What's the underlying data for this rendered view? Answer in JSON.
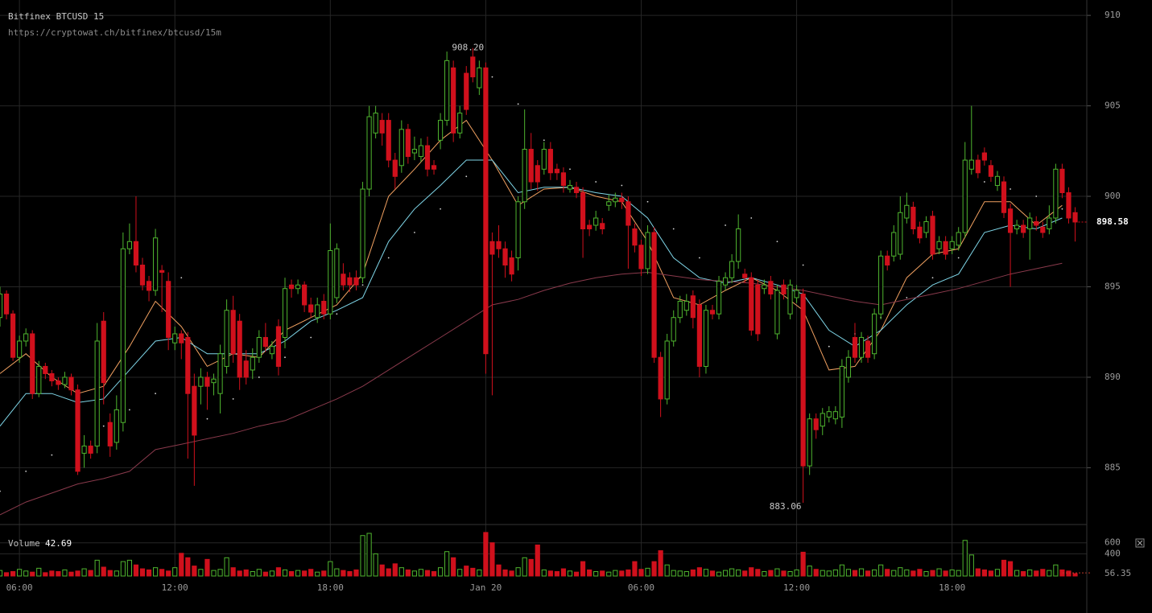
{
  "chart_data": {
    "type": "candlestick",
    "title": "Bitfinex BTCUSD 15",
    "subtitle": "https://cryptowat.ch/bitfinex/btcusd/15m",
    "xlim": [
      5.25,
      47.2
    ],
    "ylim": [
      881.95,
      910.85
    ],
    "yticks": [
      885,
      890,
      895,
      900,
      905,
      910
    ],
    "xticks": [
      {
        "value": 6,
        "label": "06:00"
      },
      {
        "value": 12,
        "label": "12:00"
      },
      {
        "value": 18,
        "label": "18:00"
      },
      {
        "value": 24,
        "label": "Jan 20"
      },
      {
        "value": 30,
        "label": "06:00"
      },
      {
        "value": 36,
        "label": "12:00"
      },
      {
        "value": 42,
        "label": "18:00"
      }
    ],
    "up_color": "#4fb52f",
    "down_color": "#d0101c",
    "grid": true,
    "x": [
      5.25,
      5.5,
      5.75,
      6,
      6.25,
      6.5,
      6.75,
      7,
      7.25,
      7.5,
      7.75,
      8,
      8.25,
      8.5,
      8.75,
      9,
      9.25,
      9.5,
      9.75,
      10,
      10.25,
      10.5,
      10.75,
      11,
      11.25,
      11.5,
      11.75,
      12,
      12.25,
      12.5,
      12.75,
      13,
      13.25,
      13.5,
      13.75,
      14,
      14.25,
      14.5,
      14.75,
      15,
      15.25,
      15.5,
      15.75,
      16,
      16.25,
      16.5,
      16.75,
      17,
      17.25,
      17.5,
      17.75,
      18,
      18.25,
      18.5,
      18.75,
      19,
      19.25,
      19.5,
      19.75,
      20,
      20.25,
      20.5,
      20.75,
      21,
      21.25,
      21.5,
      21.75,
      22,
      22.25,
      22.5,
      22.75,
      23,
      23.25,
      23.5,
      23.75,
      24,
      24.25,
      24.5,
      24.75,
      25,
      25.25,
      25.5,
      25.75,
      26,
      26.25,
      26.5,
      26.75,
      27,
      27.25,
      27.5,
      27.75,
      28,
      28.25,
      28.5,
      28.75,
      29,
      29.25,
      29.5,
      29.75,
      30,
      30.25,
      30.5,
      30.75,
      31,
      31.25,
      31.5,
      31.75,
      32,
      32.25,
      32.5,
      32.75,
      33,
      33.25,
      33.5,
      33.75,
      34,
      34.25,
      34.5,
      34.75,
      35,
      35.25,
      35.5,
      35.75,
      36,
      36.25,
      36.5,
      36.75,
      37,
      37.25,
      37.5,
      37.75,
      38,
      38.25,
      38.5,
      38.75,
      39,
      39.25,
      39.5,
      39.75,
      40,
      40.25,
      40.5,
      40.75,
      41,
      41.25,
      41.5,
      41.75,
      42,
      42.25,
      42.5,
      42.75,
      43,
      43.25,
      43.5,
      43.75,
      44,
      44.25,
      44.5,
      44.75,
      45,
      45.25,
      45.5,
      45.75,
      46,
      46.25,
      46.5,
      46.75
    ],
    "open": [
      893.3,
      894.6,
      893.5,
      891.1,
      892.0,
      892.4,
      889.1,
      890.6,
      890.2,
      889.8,
      889.6,
      890.0,
      889.3,
      885.8,
      886.2,
      886.2,
      893.1,
      887.5,
      886.4,
      887.5,
      897.1,
      897.5,
      896.2,
      895.3,
      894.8,
      895.9,
      895.3,
      891.9,
      892.4,
      892.2,
      889.5,
      889.5,
      890.0,
      889.7,
      889.1,
      890.6,
      893.7,
      893.1,
      890.9,
      890.4,
      891.1,
      892.2,
      891.3,
      892.8,
      892.2,
      895.1,
      894.9,
      895.1,
      894.0,
      893.3,
      894.2,
      893.5,
      894.4,
      895.7,
      895.5,
      895.5,
      895.5,
      900.4,
      903.5,
      904.2,
      904.2,
      902.0,
      901.7,
      903.7,
      902.4,
      902.2,
      902.8,
      901.7,
      903.1,
      904.2,
      907.1,
      903.5,
      906.8,
      907.7,
      906.0,
      907.1,
      897.5,
      897.5,
      897.1,
      896.6,
      896.6,
      899.7,
      902.6,
      901.7,
      901.5,
      902.6,
      901.5,
      901.3,
      900.4,
      900.5,
      900.2,
      898.4,
      898.4,
      898.5,
      899.5,
      899.7,
      899.9,
      899.7,
      898.2,
      897.3,
      896.0,
      898.0,
      891.1,
      888.8,
      892.0,
      893.3,
      893.7,
      894.5,
      894.0,
      890.6,
      893.7,
      893.5,
      895.1,
      895.5,
      896.4,
      895.7,
      895.5,
      895.1,
      894.9,
      895.3,
      892.4,
      895.1,
      893.5,
      894.4,
      894.6,
      885.1,
      887.7,
      887.3,
      887.8,
      887.7,
      887.8,
      890.0,
      892.2,
      891.1,
      892.0,
      891.3,
      893.5,
      896.7,
      896.7,
      896.8,
      898.8,
      899.4,
      898.3,
      898.0,
      898.9,
      897.1,
      897.5,
      897.1,
      897.3,
      898.0,
      901.5,
      902.0,
      902.4,
      901.7,
      900.6,
      900.8,
      899.3,
      898.2,
      898.4,
      898.2,
      898.6,
      898.3,
      898.2,
      898.8,
      901.5,
      900.2,
      899.1
    ],
    "high": [
      895.0,
      894.8,
      893.7,
      892.3,
      892.7,
      892.6,
      890.9,
      890.8,
      890.4,
      890.0,
      890.3,
      890.2,
      889.6,
      886.8,
      886.5,
      893.0,
      893.6,
      888.0,
      889.0,
      898.0,
      898.5,
      900.0,
      896.6,
      895.6,
      898.2,
      896.2,
      895.8,
      892.8,
      892.6,
      892.5,
      890.2,
      890.5,
      890.3,
      890.2,
      891.8,
      894.3,
      894.5,
      893.5,
      891.5,
      891.6,
      892.6,
      893.0,
      892.0,
      893.2,
      895.5,
      895.4,
      895.4,
      895.3,
      894.4,
      894.4,
      894.6,
      898.5,
      897.4,
      896.3,
      895.8,
      895.9,
      900.8,
      905.0,
      905.0,
      904.6,
      904.6,
      902.4,
      904.2,
      904.0,
      903.3,
      903.2,
      903.3,
      902.0,
      904.6,
      908.0,
      907.5,
      905.0,
      907.2,
      908.2,
      907.5,
      907.4,
      898.0,
      898.4,
      897.5,
      897.0,
      900.0,
      904.8,
      903.5,
      902.0,
      903.0,
      903.0,
      901.8,
      901.6,
      900.9,
      900.8,
      900.5,
      898.7,
      899.2,
      898.8,
      900.1,
      900.2,
      900.2,
      900.0,
      898.5,
      897.6,
      898.4,
      898.3,
      891.4,
      892.4,
      893.7,
      894.5,
      894.6,
      894.8,
      894.3,
      894.0,
      894.0,
      895.6,
      895.8,
      896.8,
      899.0,
      896.0,
      895.8,
      895.4,
      895.4,
      895.6,
      895.1,
      895.4,
      895.4,
      895.1,
      894.9,
      888.0,
      888.0,
      888.3,
      888.4,
      888.4,
      891.0,
      891.5,
      893.0,
      892.5,
      892.3,
      893.8,
      897.0,
      897.0,
      898.4,
      900.0,
      900.2,
      899.7,
      898.6,
      898.9,
      899.2,
      897.8,
      897.8,
      897.8,
      898.3,
      903.0,
      905.0,
      902.3,
      902.7,
      902.0,
      901.4,
      901.1,
      899.6,
      898.7,
      898.7,
      899.1,
      898.9,
      898.6,
      899.5,
      901.8,
      901.8,
      900.5,
      899.4
    ],
    "low": [
      892.8,
      893.2,
      890.9,
      890.8,
      891.7,
      888.8,
      888.9,
      889.9,
      889.5,
      889.3,
      889.4,
      889.0,
      884.6,
      885.0,
      885.5,
      885.8,
      888.5,
      885.6,
      886.0,
      887.0,
      896.8,
      895.8,
      894.8,
      894.2,
      894.5,
      893.6,
      891.5,
      891.5,
      891.0,
      885.5,
      884.0,
      888.5,
      888.2,
      889.0,
      888.0,
      890.2,
      890.8,
      889.3,
      889.6,
      889.9,
      890.8,
      891.4,
      891.0,
      890.1,
      891.6,
      894.4,
      894.6,
      893.6,
      893.3,
      893.0,
      893.2,
      893.2,
      894.1,
      894.8,
      894.7,
      894.8,
      895.2,
      900.0,
      903.2,
      902.8,
      901.6,
      900.4,
      901.3,
      901.8,
      902.0,
      901.9,
      901.1,
      901.2,
      902.6,
      903.9,
      903.0,
      903.2,
      904.5,
      906.3,
      905.6,
      890.2,
      889.0,
      896.6,
      895.5,
      895.3,
      895.9,
      899.3,
      900.4,
      900.3,
      901.2,
      900.9,
      900.9,
      900.2,
      900.2,
      899.9,
      896.6,
      897.8,
      898.1,
      897.9,
      899.2,
      899.4,
      899.3,
      896.0,
      896.9,
      895.6,
      895.7,
      890.8,
      887.8,
      888.5,
      891.7,
      893.0,
      893.4,
      892.7,
      890.0,
      890.2,
      893.2,
      893.2,
      894.8,
      895.2,
      896.0,
      895.2,
      892.3,
      892.0,
      894.6,
      894.3,
      892.1,
      894.3,
      893.2,
      894.1,
      883.06,
      884.6,
      886.6,
      886.8,
      887.5,
      887.4,
      887.2,
      889.7,
      890.8,
      890.8,
      890.8,
      891.0,
      893.2,
      895.9,
      896.4,
      896.5,
      898.5,
      897.9,
      897.4,
      897.7,
      896.5,
      896.8,
      896.5,
      896.8,
      897.0,
      897.7,
      901.2,
      901.0,
      901.7,
      900.8,
      900.3,
      898.8,
      895.0,
      897.9,
      897.7,
      896.5,
      898.1,
      897.7,
      897.9,
      898.5,
      899.9,
      898.5,
      897.5
    ],
    "close": [
      894.6,
      893.5,
      891.1,
      892.0,
      892.4,
      889.1,
      890.6,
      890.2,
      889.8,
      889.6,
      890.0,
      889.3,
      884.8,
      886.2,
      885.8,
      892.0,
      889.7,
      886.2,
      888.2,
      897.1,
      897.5,
      896.2,
      895.1,
      894.8,
      897.7,
      895.8,
      892.2,
      892.4,
      891.9,
      889.1,
      886.8,
      890.0,
      889.5,
      889.9,
      891.3,
      893.7,
      891.3,
      890.0,
      890.0,
      891.1,
      892.2,
      891.7,
      891.7,
      890.6,
      894.9,
      894.9,
      895.1,
      894.0,
      893.6,
      894.0,
      893.5,
      897.0,
      897.1,
      895.1,
      895.1,
      895.1,
      900.4,
      904.4,
      904.6,
      903.5,
      902.0,
      901.1,
      903.7,
      902.2,
      902.6,
      902.8,
      901.5,
      901.5,
      904.2,
      907.5,
      903.5,
      904.6,
      904.8,
      906.6,
      907.1,
      891.3,
      896.8,
      897.1,
      896.2,
      895.7,
      899.7,
      902.6,
      900.8,
      900.8,
      902.6,
      901.3,
      901.3,
      900.6,
      900.6,
      900.2,
      898.2,
      898.2,
      898.8,
      898.2,
      899.7,
      899.9,
      899.7,
      898.4,
      897.3,
      896.0,
      898.0,
      891.1,
      888.8,
      892.0,
      893.3,
      894.2,
      894.2,
      893.3,
      890.6,
      893.7,
      893.5,
      895.3,
      895.5,
      896.4,
      898.2,
      895.5,
      892.6,
      892.4,
      895.1,
      894.6,
      894.8,
      894.6,
      895.1,
      894.8,
      885.1,
      887.7,
      887.1,
      888.0,
      888.1,
      888.1,
      890.6,
      891.1,
      891.1,
      892.2,
      891.1,
      893.5,
      896.7,
      896.2,
      898.0,
      899.1,
      899.5,
      898.2,
      897.7,
      898.6,
      896.8,
      897.5,
      896.8,
      897.5,
      898.0,
      902.0,
      902.0,
      901.3,
      902.0,
      901.1,
      901.1,
      899.1,
      898.0,
      898.4,
      898.0,
      898.8,
      898.4,
      898.0,
      898.8,
      901.5,
      900.2,
      898.8,
      898.58
    ],
    "annotations": [
      {
        "value": 908.2,
        "label": "908.20"
      },
      883.06
    ],
    "overlays": {
      "x": [
        5.25,
        6.25,
        7.25,
        8.25,
        9.25,
        10.25,
        11.25,
        12.25,
        13.25,
        14.25,
        15.25,
        16.25,
        17.25,
        18.25,
        19.25,
        20.25,
        21.25,
        22.25,
        23.25,
        24.25,
        25.25,
        26.25,
        27.25,
        28.25,
        29.25,
        30.25,
        31.25,
        32.25,
        33.25,
        34.25,
        35.25,
        36.25,
        37.25,
        38.25,
        39.25,
        40.25,
        41.25,
        42.25,
        43.25,
        44.25,
        45.25,
        46.25
      ],
      "lines": [
        {
          "color": "#f0a060",
          "values": [
            890.2,
            891.3,
            890.0,
            889.1,
            889.5,
            891.7,
            894.2,
            892.8,
            890.6,
            891.3,
            891.1,
            892.6,
            893.3,
            894.0,
            895.7,
            900.0,
            901.5,
            903.1,
            904.2,
            902.0,
            899.5,
            900.4,
            900.5,
            900.0,
            899.7,
            897.5,
            894.4,
            894.0,
            894.8,
            895.5,
            894.8,
            893.7,
            890.4,
            890.6,
            892.6,
            895.5,
            896.8,
            897.1,
            899.7,
            899.7,
            898.4,
            899.5
          ]
        },
        {
          "color": "#7fd6e8",
          "values": [
            887.3,
            889.1,
            889.1,
            888.6,
            888.8,
            890.4,
            892.0,
            892.2,
            891.3,
            891.3,
            891.3,
            892.0,
            893.1,
            893.7,
            894.4,
            897.5,
            899.3,
            900.6,
            902.0,
            902.0,
            900.2,
            900.5,
            900.5,
            900.2,
            900.0,
            898.8,
            896.6,
            895.5,
            895.2,
            895.5,
            895.1,
            894.6,
            892.6,
            891.7,
            892.6,
            894.0,
            895.1,
            895.7,
            898.0,
            898.4,
            898.2,
            898.8
          ]
        },
        {
          "color": "#8a3a4c",
          "values": [
            882.4,
            883.1,
            883.6,
            884.1,
            884.4,
            884.8,
            886.0,
            886.3,
            886.6,
            886.9,
            887.3,
            887.6,
            888.2,
            888.8,
            889.5,
            890.4,
            891.3,
            892.2,
            893.1,
            894.0,
            894.3,
            894.8,
            895.2,
            895.5,
            895.7,
            895.8,
            895.6,
            895.4,
            895.3,
            895.2,
            895.0,
            894.8,
            894.5,
            894.2,
            894.0,
            894.3,
            894.6,
            894.9,
            895.3,
            895.7,
            896.0,
            896.3
          ]
        }
      ],
      "dots": {
        "color": "#d8d8d8",
        "values": [
          883.7,
          884.8,
          885.7,
          886.5,
          887.3,
          888.2,
          889.1,
          895.5,
          887.7,
          888.8,
          890.0,
          891.1,
          892.2,
          893.5,
          895.1,
          896.6,
          898.0,
          899.3,
          901.1,
          906.6,
          905.1,
          903.1,
          901.5,
          900.8,
          900.6,
          899.7,
          898.2,
          896.6,
          898.4,
          898.8,
          897.5,
          896.2,
          891.7,
          892.4,
          893.3,
          894.4,
          895.5,
          896.6,
          900.8,
          900.4,
          900.0,
          899.3
        ]
      }
    },
    "volume_label": "Volume",
    "volume_ylim": [
      0,
      857
    ],
    "volume_ticks": [
      400,
      600
    ],
    "volume_marker": 56.35,
    "volume": [
      100,
      60,
      80,
      120,
      90,
      70,
      140,
      60,
      90,
      80,
      110,
      70,
      90,
      130,
      100,
      285,
      160,
      100,
      90,
      260,
      285,
      200,
      130,
      110,
      150,
      120,
      90,
      150,
      410,
      330,
      180,
      120,
      300,
      100,
      120,
      330,
      150,
      90,
      110,
      80,
      120,
      70,
      90,
      150,
      110,
      80,
      100,
      90,
      120,
      70,
      90,
      260,
      130,
      100,
      80,
      110,
      730,
      770,
      400,
      200,
      130,
      220,
      150,
      110,
      90,
      120,
      100,
      80,
      150,
      440,
      330,
      120,
      180,
      140,
      110,
      786,
      600,
      200,
      110,
      90,
      150,
      330,
      300,
      560,
      110,
      90,
      80,
      130,
      90,
      70,
      260,
      110,
      80,
      90,
      70,
      100,
      90,
      110,
      260,
      120,
      140,
      260,
      457,
      200,
      100,
      90,
      80,
      110,
      150,
      120,
      90,
      70,
      100,
      130,
      110,
      90,
      150,
      120,
      80,
      100,
      130,
      90,
      80,
      110,
      430,
      180,
      120,
      100,
      90,
      110,
      200,
      120,
      100,
      130,
      90,
      110,
      200,
      120,
      100,
      150,
      110,
      90,
      120,
      80,
      100,
      130,
      90,
      110,
      100,
      643,
      380,
      130,
      110,
      90,
      120,
      285,
      260,
      100,
      80,
      110,
      90,
      120,
      100,
      200,
      110,
      90,
      42.69
    ]
  }
}
